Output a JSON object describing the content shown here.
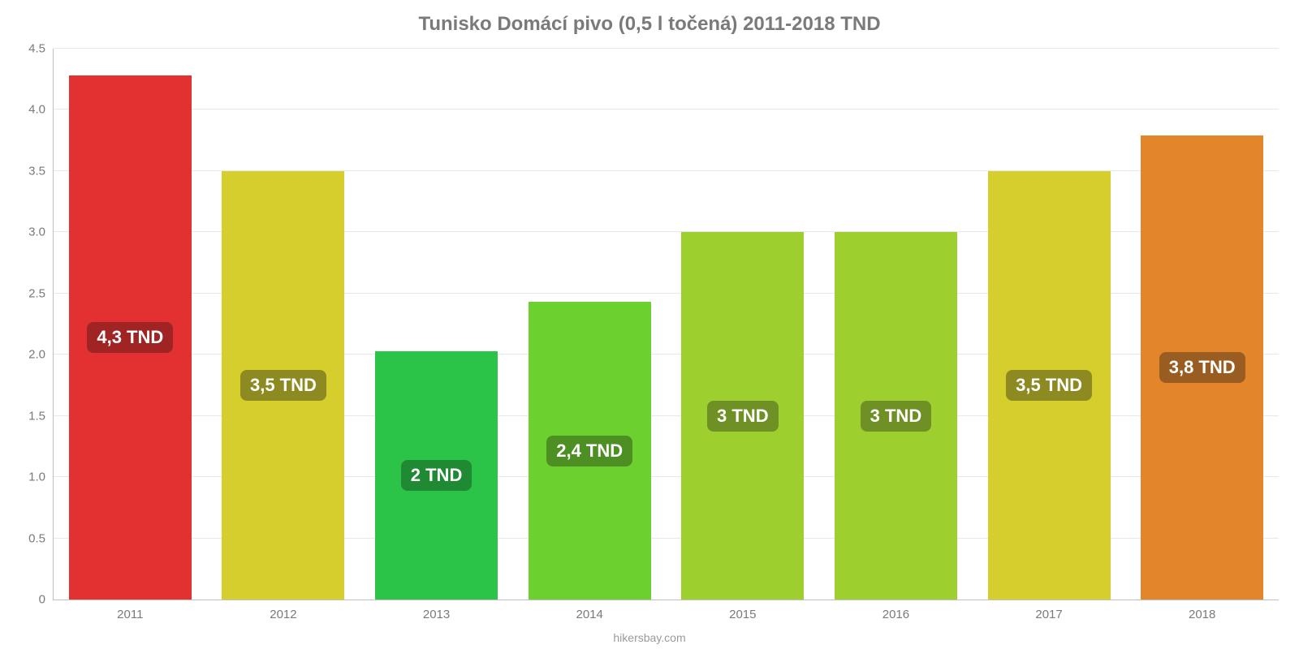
{
  "chart": {
    "type": "bar",
    "title": "Tunisko Domácí pivo (0,5 l točená) 2011-2018 TND",
    "title_fontsize": 24,
    "title_color": "#7a7a7a",
    "background_color": "#ffffff",
    "grid_color": "#e8e8e8",
    "axis_color": "#bfbfbf",
    "tick_color": "#7a7a7a",
    "tick_fontsize": 15,
    "categories": [
      "2011",
      "2012",
      "2013",
      "2014",
      "2015",
      "2016",
      "2017",
      "2018"
    ],
    "values": [
      4.28,
      3.5,
      2.03,
      2.43,
      3.0,
      3.0,
      3.5,
      3.79
    ],
    "value_labels": [
      "4,3 TND",
      "3,5 TND",
      "2 TND",
      "2,4 TND",
      "3 TND",
      "3 TND",
      "3,5 TND",
      "3,8 TND"
    ],
    "bar_colors": [
      "#e33030",
      "#d6ce2c",
      "#2bc448",
      "#6cd02e",
      "#9dd02e",
      "#9dd02e",
      "#d6ce2c",
      "#e3852a"
    ],
    "label_bg_colors": [
      "#a12424",
      "#8d8a22",
      "#1f8a33",
      "#4e8f23",
      "#6e9024",
      "#6e9024",
      "#8d8a22",
      "#9a5d21"
    ],
    "label_text_color": "#ffffff",
    "label_fontsize": 22,
    "ylim": [
      0,
      4.5
    ],
    "yticks": [
      0,
      0.5,
      1.0,
      1.5,
      2.0,
      2.5,
      3.0,
      3.5,
      4.0,
      4.5
    ],
    "ytick_labels": [
      "0",
      "0.5",
      "1.0",
      "1.5",
      "2.0",
      "2.5",
      "3.0",
      "3.5",
      "4.0",
      "4.5"
    ],
    "bar_width_pct": 80,
    "attribution": "hikersbay.com",
    "attribution_color": "#9a9a9a",
    "attribution_fontsize": 14
  }
}
